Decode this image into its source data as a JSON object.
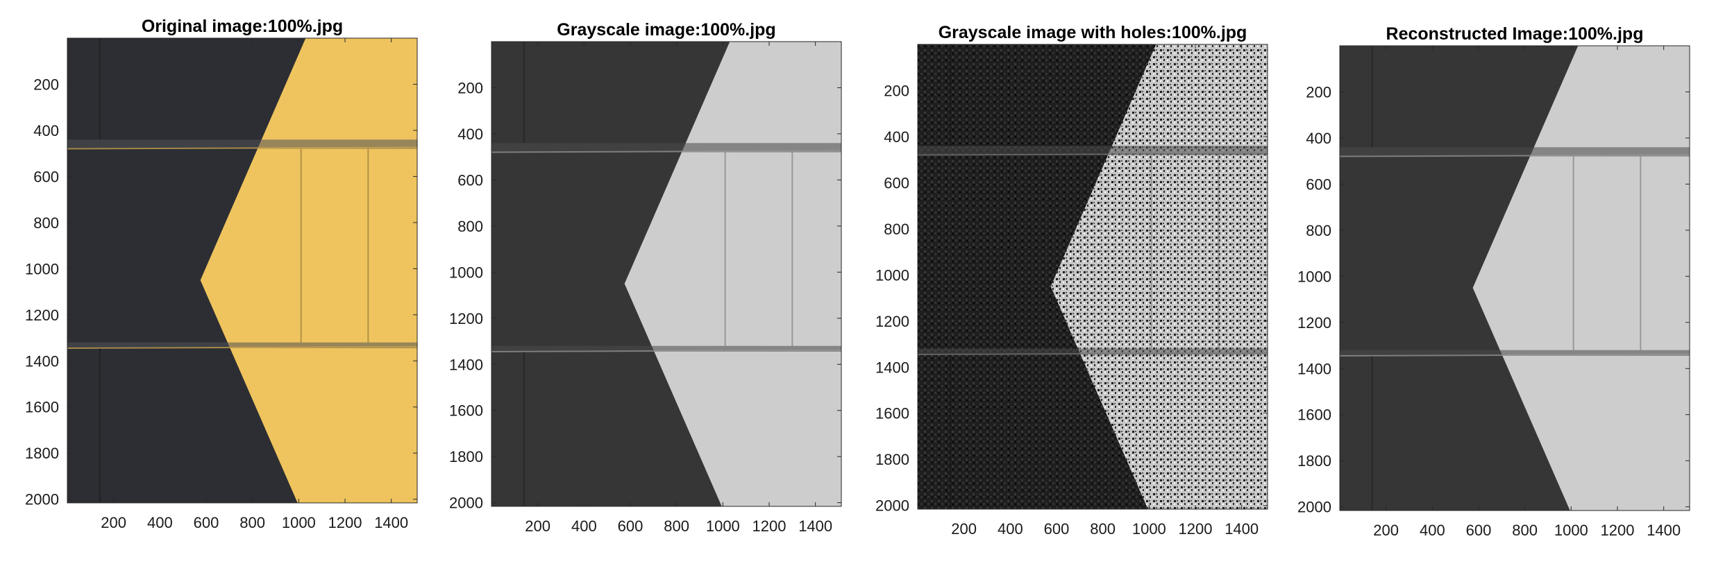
{
  "figure": {
    "panels": [
      {
        "id": "original",
        "title": "Original image:100%.jpg",
        "image_kind": "color",
        "xticks": [
          "200",
          "400",
          "600",
          "800",
          "1000",
          "1200",
          "1400"
        ],
        "yticks": [
          "200",
          "400",
          "600",
          "800",
          "1000",
          "1200",
          "1400",
          "1600",
          "1800",
          "2000"
        ]
      },
      {
        "id": "grayscale",
        "title": "Grayscale image:100%.jpg",
        "image_kind": "grayscale",
        "xticks": [
          "200",
          "400",
          "600",
          "800",
          "1000",
          "1200",
          "1400"
        ],
        "yticks": [
          "200",
          "400",
          "600",
          "800",
          "1000",
          "1200",
          "1400",
          "1600",
          "1800",
          "2000"
        ]
      },
      {
        "id": "holes",
        "title": "Grayscale image with holes:100%.jpg",
        "image_kind": "holes",
        "xticks": [
          "200",
          "400",
          "600",
          "800",
          "1000",
          "1200",
          "1400"
        ],
        "yticks": [
          "200",
          "400",
          "600",
          "800",
          "1000",
          "1200",
          "1400",
          "1600",
          "1800",
          "2000"
        ]
      },
      {
        "id": "reconstructed",
        "title": "Reconstructed Image:100%.jpg",
        "image_kind": "grayscale",
        "xticks": [
          "200",
          "400",
          "600",
          "800",
          "1000",
          "1200",
          "1400"
        ],
        "yticks": [
          "200",
          "400",
          "600",
          "800",
          "1000",
          "1200",
          "1400",
          "1600",
          "1800",
          "2000"
        ]
      }
    ],
    "colors": {
      "dark_wall": "#2c2e33",
      "yellow_paint": "#efc45e",
      "gray_dark": "#363636",
      "gray_light": "#cdcdcd",
      "mortar_dark": "#4a4a4a",
      "mortar_light": "#9a9a9a",
      "axis": "#262626"
    }
  }
}
